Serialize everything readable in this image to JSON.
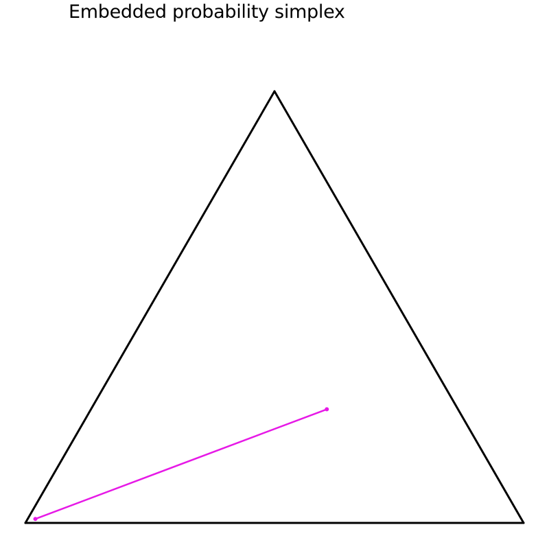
{
  "chart_data": {
    "type": "line",
    "title": "Embedded probability simplex",
    "simplex": {
      "vertices": [
        {
          "x": 0.0,
          "y": 0.0
        },
        {
          "x": 1.0,
          "y": 0.0
        },
        {
          "x": 0.5,
          "y": 0.866
        }
      ],
      "edge_color": "#000000"
    },
    "series": [
      {
        "color": "#e619e6",
        "points": [
          {
            "x": 0.02,
            "y": 0.008
          },
          {
            "x": 0.605,
            "y": 0.228
          }
        ]
      }
    ],
    "xlim": [
      0.0,
      1.0
    ],
    "ylim": [
      0.0,
      0.866
    ],
    "grid": false
  }
}
